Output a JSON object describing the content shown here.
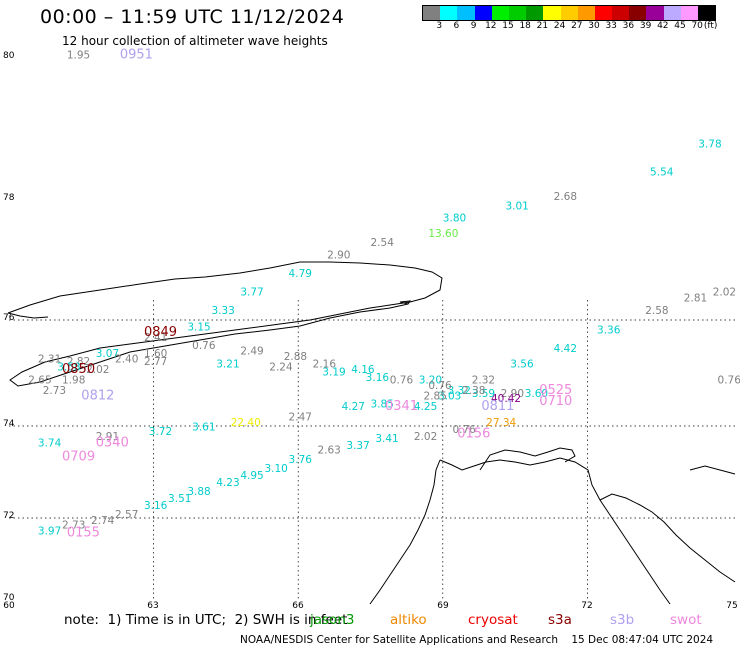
{
  "header": {
    "title": "00:00 – 11:59 UTC 11/12/2024",
    "subtitle": "12 hour collection of altimeter wave heights"
  },
  "legend": {
    "unit": "(ft)",
    "colors": [
      "#808080",
      "#00ffff",
      "#00bfff",
      "#0000ff",
      "#00ee00",
      "#00cc00",
      "#009900",
      "#ffff00",
      "#ffcc00",
      "#ff9900",
      "#ff0000",
      "#cc0000",
      "#880000",
      "#990099",
      "#bbaaff",
      "#ff99ff",
      "#000000"
    ],
    "values": [
      "3",
      "6",
      "9",
      "12",
      "15",
      "18",
      "21",
      "24",
      "27",
      "30",
      "33",
      "36",
      "39",
      "42",
      "45",
      "70"
    ]
  },
  "axes": {
    "lat_labels": [
      "80",
      "78",
      "76",
      "74",
      "72",
      "70"
    ],
    "lon_labels": [
      "60",
      "63",
      "66",
      "69",
      "72",
      "75"
    ]
  },
  "map_data": {
    "wave_heights": [
      {
        "v": "1.95",
        "c": "#808080",
        "lat": 79.95,
        "lon": 61.2
      },
      {
        "v": "5.54",
        "c": "#00cccc",
        "lat": 78.3,
        "lon": 73.3
      },
      {
        "v": "3.78",
        "c": "#00cccc",
        "lat": 78.7,
        "lon": 74.3
      },
      {
        "v": "2.68",
        "c": "#808080",
        "lat": 77.95,
        "lon": 71.3
      },
      {
        "v": "3.01",
        "c": "#00cccc",
        "lat": 77.8,
        "lon": 70.3
      },
      {
        "v": "3.80",
        "c": "#00cccc",
        "lat": 77.6,
        "lon": 69.0
      },
      {
        "v": "13.60",
        "c": "#66ee44",
        "lat": 77.35,
        "lon": 68.7
      },
      {
        "v": "2.54",
        "c": "#808080",
        "lat": 77.2,
        "lon": 67.5
      },
      {
        "v": "2.90",
        "c": "#808080",
        "lat": 77.0,
        "lon": 66.6
      },
      {
        "v": "4.79",
        "c": "#00cccc",
        "lat": 76.7,
        "lon": 65.8
      },
      {
        "v": "3.77",
        "c": "#00cccc",
        "lat": 76.4,
        "lon": 64.8
      },
      {
        "v": "3.33",
        "c": "#00cccc",
        "lat": 76.1,
        "lon": 64.2
      },
      {
        "v": "3.15",
        "c": "#00cccc",
        "lat": 75.8,
        "lon": 63.7
      },
      {
        "v": "2.41",
        "c": "#808080",
        "lat": 75.6,
        "lon": 62.8
      },
      {
        "v": "3.07",
        "c": "#00cccc",
        "lat": 75.3,
        "lon": 61.8
      },
      {
        "v": "2.82",
        "c": "#808080",
        "lat": 75.15,
        "lon": 61.2
      },
      {
        "v": "2.31",
        "c": "#808080",
        "lat": 75.2,
        "lon": 60.6
      },
      {
        "v": "3.58",
        "c": "#00cccc",
        "lat": 75.05,
        "lon": 61.0
      },
      {
        "v": "2.65",
        "c": "#808080",
        "lat": 74.8,
        "lon": 60.4
      },
      {
        "v": "2.77",
        "c": "#808080",
        "lat": 75.15,
        "lon": 62.8
      },
      {
        "v": "3.21",
        "c": "#00cccc",
        "lat": 75.1,
        "lon": 64.3
      },
      {
        "v": "2.24",
        "c": "#808080",
        "lat": 75.05,
        "lon": 65.4
      },
      {
        "v": "3.19",
        "c": "#00cccc",
        "lat": 74.95,
        "lon": 66.5
      },
      {
        "v": "3.16",
        "c": "#00cccc",
        "lat": 74.85,
        "lon": 67.4
      },
      {
        "v": "3.20",
        "c": "#00cccc",
        "lat": 74.8,
        "lon": 68.5
      },
      {
        "v": "2.32",
        "c": "#808080",
        "lat": 74.8,
        "lon": 69.6
      },
      {
        "v": "3.56",
        "c": "#00cccc",
        "lat": 75.1,
        "lon": 70.4
      },
      {
        "v": "4.42",
        "c": "#00cccc",
        "lat": 75.4,
        "lon": 71.3
      },
      {
        "v": "3.36",
        "c": "#00cccc",
        "lat": 75.75,
        "lon": 72.2
      },
      {
        "v": "2.58",
        "c": "#808080",
        "lat": 76.1,
        "lon": 73.2
      },
      {
        "v": "2.81",
        "c": "#808080",
        "lat": 76.3,
        "lon": 74.0
      },
      {
        "v": "2.02",
        "c": "#808080",
        "lat": 76.4,
        "lon": 74.6
      },
      {
        "v": "0.76",
        "c": "#808080",
        "lat": 74.8,
        "lon": 74.7
      },
      {
        "v": "3.59",
        "c": "#00cccc",
        "lat": 74.55,
        "lon": 69.6
      },
      {
        "v": "2.90",
        "c": "#808080",
        "lat": 74.55,
        "lon": 70.2
      },
      {
        "v": "3.60",
        "c": "#00cccc",
        "lat": 74.55,
        "lon": 70.7
      },
      {
        "v": "3.32",
        "c": "#00cccc",
        "lat": 74.6,
        "lon": 69.1
      },
      {
        "v": "3.03",
        "c": "#00cccc",
        "lat": 74.5,
        "lon": 68.9
      },
      {
        "v": "2.85",
        "c": "#808080",
        "lat": 74.5,
        "lon": 68.6
      },
      {
        "v": "4.25",
        "c": "#00cccc",
        "lat": 74.3,
        "lon": 68.4
      },
      {
        "v": "3.85",
        "c": "#00cccc",
        "lat": 74.35,
        "lon": 67.5
      },
      {
        "v": "4.27",
        "c": "#00cccc",
        "lat": 74.3,
        "lon": 66.9
      },
      {
        "v": "2.47",
        "c": "#808080",
        "lat": 74.1,
        "lon": 65.8
      },
      {
        "v": "22.40",
        "c": "#eeee00",
        "lat": 74.0,
        "lon": 64.6
      },
      {
        "v": "3.61",
        "c": "#00cccc",
        "lat": 73.9,
        "lon": 63.8
      },
      {
        "v": "3.72",
        "c": "#00cccc",
        "lat": 73.8,
        "lon": 62.9
      },
      {
        "v": "2.91",
        "c": "#808080",
        "lat": 73.7,
        "lon": 61.8
      },
      {
        "v": "3.74",
        "c": "#00cccc",
        "lat": 73.55,
        "lon": 60.6
      },
      {
        "v": "1.60",
        "c": "#808080",
        "lat": 75.3,
        "lon": 62.8
      },
      {
        "v": "0.76",
        "c": "#808080",
        "lat": 75.45,
        "lon": 63.8
      },
      {
        "v": "2.49",
        "c": "#808080",
        "lat": 75.35,
        "lon": 64.8
      },
      {
        "v": "2.88",
        "c": "#808080",
        "lat": 75.25,
        "lon": 65.7
      },
      {
        "v": "2.40",
        "c": "#808080",
        "lat": 75.2,
        "lon": 62.2
      },
      {
        "v": "2.02",
        "c": "#808080",
        "lat": 75.0,
        "lon": 61.6
      },
      {
        "v": "1.98",
        "c": "#808080",
        "lat": 74.8,
        "lon": 61.1
      },
      {
        "v": "2.73",
        "c": "#808080",
        "lat": 74.6,
        "lon": 60.7
      },
      {
        "v": "2.16",
        "c": "#808080",
        "lat": 75.1,
        "lon": 66.3
      },
      {
        "v": "4.16",
        "c": "#00cccc",
        "lat": 75.0,
        "lon": 67.1
      },
      {
        "v": "0.76",
        "c": "#808080",
        "lat": 74.8,
        "lon": 67.9
      },
      {
        "v": "0.76",
        "c": "#808080",
        "lat": 74.7,
        "lon": 68.7
      },
      {
        "v": "2.38",
        "c": "#808080",
        "lat": 74.6,
        "lon": 69.4
      },
      {
        "v": "40.42",
        "c": "#880088",
        "lat": 74.45,
        "lon": 70.0
      },
      {
        "v": "27.34",
        "c": "#ee9900",
        "lat": 74.0,
        "lon": 69.9
      },
      {
        "v": "0.76",
        "c": "#808080",
        "lat": 73.85,
        "lon": 69.2
      },
      {
        "v": "2.02",
        "c": "#808080",
        "lat": 73.7,
        "lon": 68.4
      },
      {
        "v": "3.41",
        "c": "#00cccc",
        "lat": 73.65,
        "lon": 67.6
      },
      {
        "v": "3.37",
        "c": "#00cccc",
        "lat": 73.5,
        "lon": 67.0
      },
      {
        "v": "2.63",
        "c": "#808080",
        "lat": 73.4,
        "lon": 66.4
      },
      {
        "v": "3.76",
        "c": "#00cccc",
        "lat": 73.2,
        "lon": 65.8
      },
      {
        "v": "3.10",
        "c": "#00cccc",
        "lat": 73.0,
        "lon": 65.3
      },
      {
        "v": "4.95",
        "c": "#00cccc",
        "lat": 72.85,
        "lon": 64.8
      },
      {
        "v": "4.23",
        "c": "#00cccc",
        "lat": 72.7,
        "lon": 64.3
      },
      {
        "v": "3.88",
        "c": "#00cccc",
        "lat": 72.5,
        "lon": 63.7
      },
      {
        "v": "3.51",
        "c": "#00cccc",
        "lat": 72.35,
        "lon": 63.3
      },
      {
        "v": "3.16",
        "c": "#00cccc",
        "lat": 72.2,
        "lon": 62.8
      },
      {
        "v": "2.57",
        "c": "#808080",
        "lat": 72.0,
        "lon": 62.2
      },
      {
        "v": "2.74",
        "c": "#808080",
        "lat": 71.85,
        "lon": 61.7
      },
      {
        "v": "2.73",
        "c": "#808080",
        "lat": 71.75,
        "lon": 61.1
      },
      {
        "v": "3.97",
        "c": "#00cccc",
        "lat": 71.6,
        "lon": 60.6
      }
    ],
    "pass_times": [
      {
        "t": "0951",
        "c": "#b0a0ee",
        "lat": 79.95,
        "lon": 62.3
      },
      {
        "t": "0849",
        "c": "#880000",
        "lat": 75.7,
        "lon": 62.8
      },
      {
        "t": "0850",
        "c": "#880000",
        "lat": 75.0,
        "lon": 61.1
      },
      {
        "t": "0525",
        "c": "#ee88dd",
        "lat": 74.6,
        "lon": 71.0
      },
      {
        "t": "0341",
        "c": "#ee88dd",
        "lat": 74.3,
        "lon": 67.8
      },
      {
        "t": "0811",
        "c": "#b0a0ee",
        "lat": 74.3,
        "lon": 69.8
      },
      {
        "t": "0340",
        "c": "#ee88dd",
        "lat": 73.55,
        "lon": 61.8
      },
      {
        "t": "0709",
        "c": "#ee88dd",
        "lat": 73.25,
        "lon": 61.1
      },
      {
        "t": "0812",
        "c": "#b0a0ee",
        "lat": 74.5,
        "lon": 61.5
      },
      {
        "t": "0710",
        "c": "#ee88dd",
        "lat": 74.4,
        "lon": 71.0
      },
      {
        "t": "0156",
        "c": "#ee88dd",
        "lat": 73.75,
        "lon": 69.3
      },
      {
        "t": "0155",
        "c": "#ee88dd",
        "lat": 71.55,
        "lon": 61.2
      }
    ]
  },
  "note": "note:  1) Time is in UTC;  2) SWH is in feet",
  "satellites": [
    {
      "name": "jason3",
      "c": "#009900"
    },
    {
      "name": "altiko",
      "c": "#ee8800"
    },
    {
      "name": "cryosat",
      "c": "#ee0000"
    },
    {
      "name": "s3a",
      "c": "#880000"
    },
    {
      "name": "s3b",
      "c": "#b0a0ee"
    },
    {
      "name": "swot",
      "c": "#ee88dd"
    }
  ],
  "footer": "NOAA/NESDIS Center for Satellite Applications and Research    15 Dec 08:47:04 UTC 2024"
}
